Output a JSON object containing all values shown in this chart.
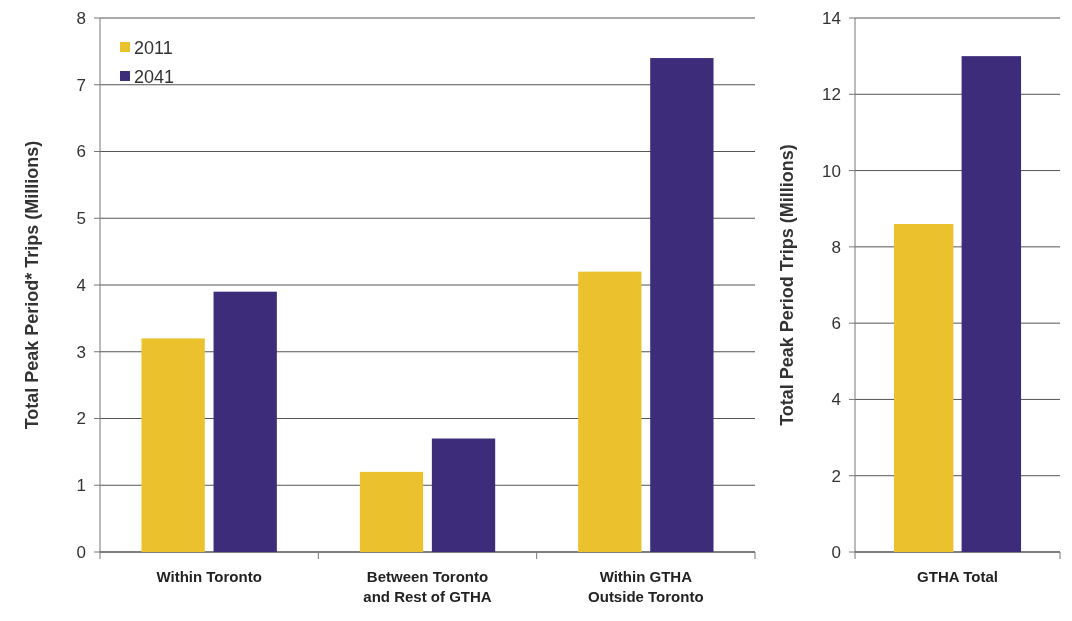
{
  "chart_data": [
    {
      "type": "bar",
      "ylabel": "Total Peak Period* Trips (Millions)",
      "categories": [
        "Within Toronto",
        "Between Toronto and Rest of GTHA",
        "Within GTHA Outside Toronto"
      ],
      "series": [
        {
          "name": "2011",
          "color": "#ecc12e",
          "values": [
            3.2,
            1.2,
            4.2
          ]
        },
        {
          "name": "2041",
          "color": "#3d2c7a",
          "values": [
            3.9,
            1.7,
            7.4
          ]
        }
      ],
      "ylim": [
        0,
        8
      ],
      "yticks": [
        0,
        1,
        2,
        3,
        4,
        5,
        6,
        7,
        8
      ],
      "grid": "y",
      "legend": "top left"
    },
    {
      "type": "bar",
      "ylabel": "Total Peak Period Trips (Millions)",
      "categories": [
        "GTHA Total"
      ],
      "series": [
        {
          "color": "#ecc12e",
          "values": [
            8.6
          ]
        },
        {
          "color": "#3d2c7a",
          "values": [
            13.0
          ]
        }
      ],
      "ylim": [
        0,
        14
      ],
      "yticks": [
        0,
        2,
        4,
        6,
        8,
        10,
        12,
        14
      ],
      "grid": "y"
    }
  ]
}
